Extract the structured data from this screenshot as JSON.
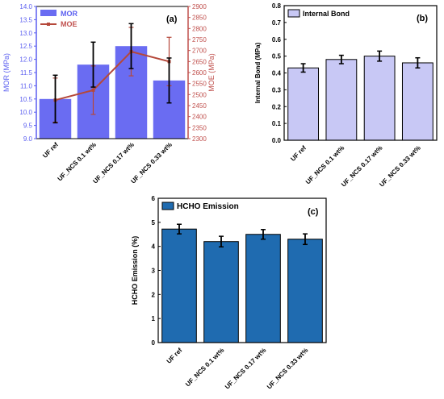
{
  "colors": {
    "mor_bar": "#6a6cf2",
    "mor_axis": "#5b5ff0",
    "moe_line": "#b5483a",
    "moe_axis": "#c0504d",
    "ib_bar": "#c8c8f5",
    "hcho_bar": "#1f6bb0",
    "frame": "#000000",
    "error_bar": "#000000"
  },
  "chart_data": [
    {
      "type": "bar",
      "panel_label": "(a)",
      "categories": [
        "UF ref",
        "UF_NCS 0.1 wt%",
        "UF_NCS 0.17 wt%",
        "UF_NCS 0.33 wt%"
      ],
      "series": [
        {
          "name": "MOR",
          "type": "bar",
          "axis": "left",
          "values": [
            10.5,
            11.8,
            12.5,
            11.2
          ],
          "errors": [
            0.9,
            0.85,
            0.85,
            0.85
          ]
        },
        {
          "name": "MOE",
          "type": "line",
          "axis": "right",
          "values": [
            2475,
            2520,
            2695,
            2650
          ],
          "errors": [
            100,
            110,
            110,
            110
          ]
        }
      ],
      "ylabel": "MOR (MPa)",
      "y2label": "MOE (MPa)",
      "ylim": [
        9.0,
        14.0
      ],
      "y2lim": [
        2300,
        2900
      ],
      "yticks": [
        "9.0",
        "9.5",
        "10.0",
        "10.5",
        "11.0",
        "11.5",
        "12.0",
        "12.5",
        "13.0",
        "13.5",
        "14.0"
      ],
      "y2ticks": [
        "2300",
        "2350",
        "2400",
        "2450",
        "2500",
        "2550",
        "2600",
        "2650",
        "2700",
        "2750",
        "2800",
        "2850",
        "2900"
      ],
      "legend": "top-left"
    },
    {
      "type": "bar",
      "panel_label": "(b)",
      "categories": [
        "UF ref",
        "UF_NCS 0.1 wt%",
        "UF_NCS 0.17 wt%",
        "UF_NCS 0.33 wt%"
      ],
      "series": [
        {
          "name": "Internal Bond",
          "values": [
            0.43,
            0.48,
            0.5,
            0.46
          ],
          "errors": [
            0.025,
            0.025,
            0.03,
            0.03
          ]
        }
      ],
      "ylabel": "Internal Bond (MPa)",
      "ylim": [
        0.0,
        0.8
      ],
      "yticks": [
        "0.0",
        "0.1",
        "0.2",
        "0.3",
        "0.4",
        "0.5",
        "0.6",
        "0.7",
        "0.8"
      ],
      "legend": "top-left"
    },
    {
      "type": "bar",
      "panel_label": "(c)",
      "categories": [
        "UF ref",
        "UF_NCS 0.1 wt%",
        "UF_NCS 0.17 wt%",
        "UF_NCS 0.33 wt%"
      ],
      "series": [
        {
          "name": "HCHO Emission",
          "values": [
            4.72,
            4.2,
            4.5,
            4.3
          ],
          "errors": [
            0.2,
            0.22,
            0.2,
            0.22
          ]
        }
      ],
      "ylabel": "HCHO Emission (%)",
      "ylim": [
        0,
        6
      ],
      "yticks": [
        "0",
        "1",
        "2",
        "3",
        "4",
        "5",
        "6"
      ],
      "legend": "top-left"
    }
  ]
}
